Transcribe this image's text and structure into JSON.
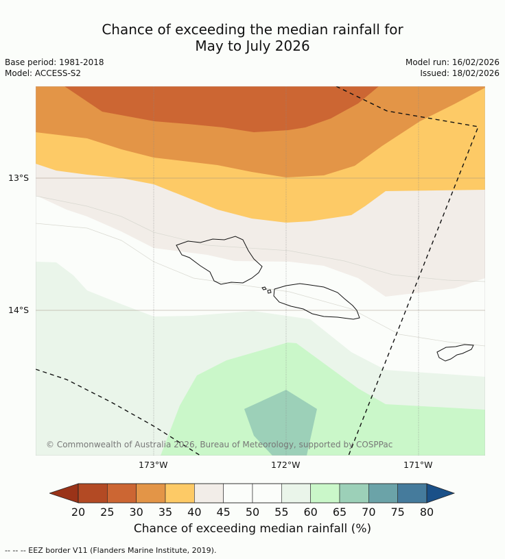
{
  "title": {
    "line1": "Chance of exceeding the median rainfall for",
    "line2": "May to July 2026"
  },
  "meta": {
    "base_period": "Base period: 1981-2018",
    "model": "Model: ACCESS-S2",
    "model_run": "Model run: 16/02/2026",
    "issued": "Issued: 18/02/2026"
  },
  "map": {
    "lat_labels": [
      "13°S",
      "14°S"
    ],
    "lon_labels": [
      "173°W",
      "172°W",
      "171°W"
    ],
    "credit": "© Commonwealth of Australia 2026, Bureau of Meteorology, supported by COSPPac"
  },
  "colorbar": {
    "ticks": [
      "20",
      "25",
      "30",
      "35",
      "40",
      "45",
      "50",
      "55",
      "60",
      "65",
      "70",
      "75",
      "80"
    ],
    "colors": [
      "#b34a24",
      "#cc6633",
      "#e39547",
      "#fdca66",
      "#f2ede8",
      "#fbfdfa",
      "#fbfdfa",
      "#eaf5ea",
      "#caf7c9",
      "#9cd0b8",
      "#6ba3a8",
      "#457b9c"
    ],
    "under_color": "#9a3318",
    "over_color": "#1a5088",
    "label": "Chance of exceeding median rainfall (%)"
  },
  "legend_note": "--  --  -- EEZ border V11 (Flanders Marine Institute, 2019)."
}
